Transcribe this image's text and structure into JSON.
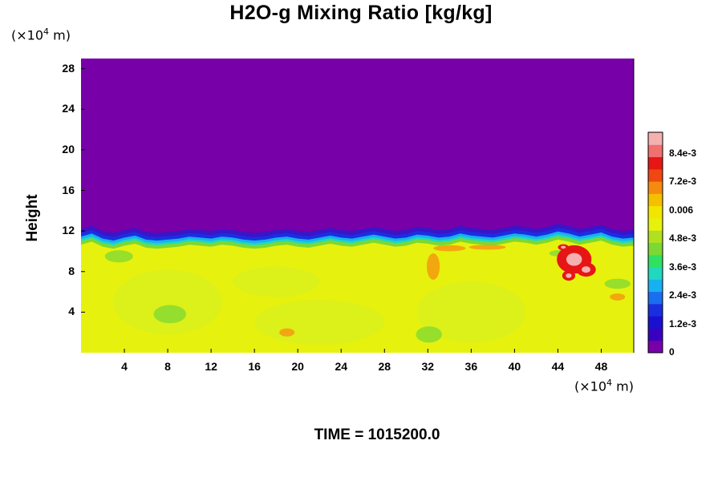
{
  "chart_data": {
    "type": "heatmap",
    "title": "H2O-g Mixing Ratio [kg/kg]",
    "ylabel": "Height",
    "xlabel": "",
    "x_unit": "(×10",
    "y_unit": "(×10",
    "unit_exp": "4",
    "unit_m": " m)",
    "x_ticks": [
      "4",
      "8",
      "12",
      "16",
      "20",
      "24",
      "28",
      "32",
      "36",
      "40",
      "44",
      "48"
    ],
    "y_ticks": [
      "4",
      "8",
      "12",
      "16",
      "20",
      "24",
      "28"
    ],
    "x_range": [
      0,
      51
    ],
    "y_range": [
      0,
      29
    ],
    "colorbar_labels": [
      "0",
      "1.2e-3",
      "2.4e-3",
      "3.6e-3",
      "4.8e-3",
      "0.006",
      "7.2e-3",
      "8.4e-3"
    ],
    "colorbar_values": [
      0,
      0.0012,
      0.0024,
      0.0036,
      0.0048,
      0.006,
      0.0072,
      0.0084
    ],
    "colorbar_max": 0.0093,
    "colors": {
      "dry": "#7700a8",
      "moist": "#e6f20d",
      "moist_light": "#d9ef1e",
      "humid": "#f2e600",
      "peak": "#e61616",
      "green": "#7cd834",
      "cyan": "#20d8c0",
      "blue": "#1a2ee0"
    },
    "moist_layer_top": [
      11.0,
      11.3,
      10.8,
      10.6,
      10.9,
      11.1,
      10.7,
      10.6,
      10.7,
      10.8,
      11.0,
      10.9,
      10.8,
      11.0,
      10.9,
      10.7,
      10.6,
      10.7,
      10.9,
      11.0,
      10.8,
      10.7,
      10.9,
      11.1,
      10.9,
      10.8,
      11.0,
      11.2,
      11.0,
      10.8,
      10.9,
      11.2,
      11.1,
      10.9,
      11.0,
      11.3,
      11.1,
      11.0,
      10.9,
      11.1,
      11.3,
      11.2,
      11.0,
      11.2,
      11.5,
      11.3,
      11.0,
      11.2,
      11.4,
      11.0,
      10.8,
      10.9
    ]
  },
  "time_label": "TIME = 1015200.0"
}
